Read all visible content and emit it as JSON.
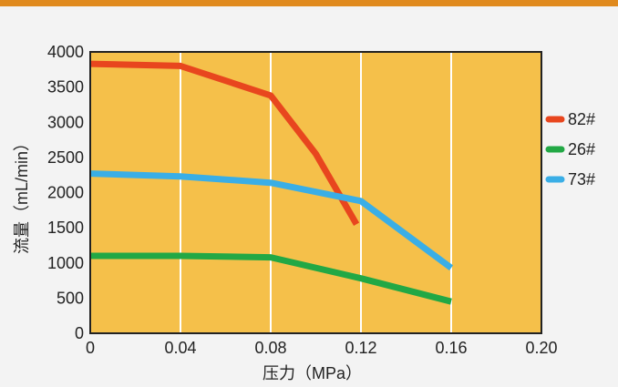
{
  "chart_data": {
    "type": "line",
    "title": "",
    "xlabel": "压力（MPa）",
    "ylabel": "流量（mL/min）",
    "xlim": [
      0,
      0.2
    ],
    "ylim": [
      0,
      4000
    ],
    "x_ticks": [
      "0",
      "0.04",
      "0.08",
      "0.12",
      "0.16",
      "0.20"
    ],
    "y_ticks": [
      "0",
      "500",
      "1000",
      "1500",
      "2000",
      "2500",
      "3000",
      "3500",
      "4000"
    ],
    "grid": "vertical",
    "legend_position": "right",
    "plot_background": "#f5c04a",
    "series": [
      {
        "name": "82#",
        "color": "#e8461e",
        "points": [
          [
            0,
            3830
          ],
          [
            0.04,
            3800
          ],
          [
            0.08,
            3380
          ],
          [
            0.1,
            2550
          ],
          [
            0.118,
            1550
          ]
        ]
      },
      {
        "name": "26#",
        "color": "#22a845",
        "points": [
          [
            0,
            1100
          ],
          [
            0.04,
            1100
          ],
          [
            0.08,
            1080
          ],
          [
            0.12,
            780
          ],
          [
            0.16,
            450
          ]
        ]
      },
      {
        "name": "73#",
        "color": "#3aaee6",
        "points": [
          [
            0,
            2270
          ],
          [
            0.04,
            2230
          ],
          [
            0.08,
            2140
          ],
          [
            0.12,
            1880
          ],
          [
            0.16,
            930
          ]
        ]
      }
    ]
  }
}
